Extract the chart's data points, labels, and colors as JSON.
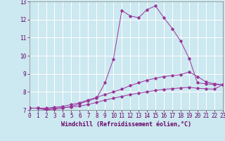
{
  "background_color": "#cce8f0",
  "grid_color": "#ffffff",
  "line_color": "#993399",
  "x_min": 0,
  "x_max": 23,
  "y_min": 7,
  "y_max": 13,
  "xlabel": "Windchill (Refroidissement éolien,°C)",
  "xlabel_fontsize": 6,
  "tick_fontsize": 5.5,
  "series": [
    {
      "x": [
        0,
        1,
        2,
        3,
        4,
        5,
        6,
        7,
        8,
        9,
        10,
        11,
        12,
        13,
        14,
        15,
        16,
        17,
        18,
        19,
        20,
        21,
        22,
        23
      ],
      "y": [
        7.1,
        7.1,
        7.0,
        7.05,
        7.1,
        7.2,
        7.35,
        7.5,
        7.65,
        8.5,
        9.8,
        12.5,
        12.2,
        12.1,
        12.55,
        12.75,
        12.1,
        11.5,
        10.8,
        9.85,
        8.5,
        8.45,
        8.4,
        8.4
      ]
    },
    {
      "x": [
        0,
        1,
        2,
        3,
        4,
        5,
        6,
        7,
        8,
        9,
        10,
        11,
        12,
        13,
        14,
        15,
        16,
        17,
        18,
        19,
        20,
        21,
        22,
        23
      ],
      "y": [
        7.1,
        7.1,
        7.1,
        7.15,
        7.2,
        7.3,
        7.4,
        7.55,
        7.7,
        7.85,
        8.0,
        8.15,
        8.35,
        8.5,
        8.65,
        8.75,
        8.85,
        8.9,
        8.95,
        9.1,
        8.85,
        8.55,
        8.45,
        8.4
      ]
    },
    {
      "x": [
        0,
        1,
        2,
        3,
        4,
        5,
        6,
        7,
        8,
        9,
        10,
        11,
        12,
        13,
        14,
        15,
        16,
        17,
        18,
        19,
        20,
        21,
        22,
        23
      ],
      "y": [
        7.1,
        7.1,
        7.05,
        7.1,
        7.13,
        7.17,
        7.22,
        7.3,
        7.42,
        7.55,
        7.65,
        7.75,
        7.85,
        7.93,
        8.0,
        8.08,
        8.14,
        8.18,
        8.22,
        8.25,
        8.2,
        8.17,
        8.15,
        8.4
      ]
    }
  ]
}
